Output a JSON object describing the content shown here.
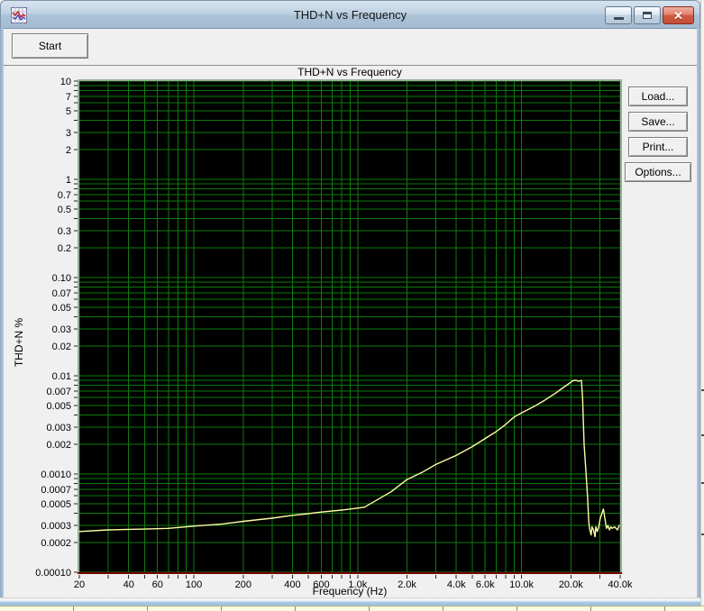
{
  "window": {
    "title": "THD+N vs Frequency"
  },
  "toolbar": {
    "start_label": "Start"
  },
  "side_buttons": [
    {
      "label": "Load..."
    },
    {
      "label": "Save..."
    },
    {
      "label": "Print..."
    },
    {
      "label": "Options..."
    }
  ],
  "chart_data": {
    "type": "line",
    "title": "THD+N vs Frequency",
    "xlabel": "Frequency (Hz)",
    "ylabel": "THD+N %",
    "x_scale": "log",
    "y_scale": "log",
    "xlim": [
      20,
      40000
    ],
    "ylim": [
      0.0001,
      10
    ],
    "grid": true,
    "colors": {
      "plot_background": "#000000",
      "grid": "#0d7c0d",
      "plot_border": "#97ad97",
      "x_axis_line": "#7a0000",
      "tick": "#222222",
      "curve": "#fdfda2",
      "label_text": "#000000"
    },
    "x_ticks": [
      {
        "label": "20",
        "value": 20
      },
      {
        "label": "40",
        "value": 40
      },
      {
        "label": "60",
        "value": 60
      },
      {
        "label": "100",
        "value": 100
      },
      {
        "label": "200",
        "value": 200
      },
      {
        "label": "400",
        "value": 400
      },
      {
        "label": "600",
        "value": 600
      },
      {
        "label": "1.0k",
        "value": 1000
      },
      {
        "label": "2.0k",
        "value": 2000
      },
      {
        "label": "4.0k",
        "value": 4000
      },
      {
        "label": "6.0k",
        "value": 6000
      },
      {
        "label": "10.0k",
        "value": 10000
      },
      {
        "label": "20.0k",
        "value": 20000
      },
      {
        "label": "40.0k",
        "value": 40000
      }
    ],
    "y_ticks": [
      {
        "label": "10",
        "value": 10
      },
      {
        "label": "7",
        "value": 7
      },
      {
        "label": "5",
        "value": 5
      },
      {
        "label": "3",
        "value": 3
      },
      {
        "label": "2",
        "value": 2
      },
      {
        "label": "1",
        "value": 1
      },
      {
        "label": "0.7",
        "value": 0.7
      },
      {
        "label": "0.5",
        "value": 0.5
      },
      {
        "label": "0.3",
        "value": 0.3
      },
      {
        "label": "0.2",
        "value": 0.2
      },
      {
        "label": "0.10",
        "value": 0.1
      },
      {
        "label": "0.07",
        "value": 0.07
      },
      {
        "label": "0.05",
        "value": 0.05
      },
      {
        "label": "0.03",
        "value": 0.03
      },
      {
        "label": "0.02",
        "value": 0.02
      },
      {
        "label": "0.01",
        "value": 0.01
      },
      {
        "label": "0.007",
        "value": 0.007
      },
      {
        "label": "0.005",
        "value": 0.005
      },
      {
        "label": "0.003",
        "value": 0.003
      },
      {
        "label": "0.002",
        "value": 0.002
      },
      {
        "label": "0.0010",
        "value": 0.001
      },
      {
        "label": "0.0007",
        "value": 0.0007
      },
      {
        "label": "0.0005",
        "value": 0.0005
      },
      {
        "label": "0.0003",
        "value": 0.0003
      },
      {
        "label": "0.0002",
        "value": 0.0002
      },
      {
        "label": "0.00010",
        "value": 0.0001
      }
    ],
    "series": [
      {
        "name": "THD+N",
        "points": [
          [
            20,
            0.00026
          ],
          [
            30,
            0.00027
          ],
          [
            50,
            0.000275
          ],
          [
            70,
            0.00028
          ],
          [
            100,
            0.000295
          ],
          [
            150,
            0.00031
          ],
          [
            200,
            0.00033
          ],
          [
            300,
            0.000355
          ],
          [
            400,
            0.00038
          ],
          [
            500,
            0.000395
          ],
          [
            600,
            0.00041
          ],
          [
            800,
            0.00043
          ],
          [
            1000,
            0.00045
          ],
          [
            1100,
            0.00046
          ],
          [
            1300,
            0.00054
          ],
          [
            1600,
            0.00066
          ],
          [
            2000,
            0.00088
          ],
          [
            2500,
            0.00105
          ],
          [
            3000,
            0.00125
          ],
          [
            4000,
            0.00155
          ],
          [
            5000,
            0.0019
          ],
          [
            6000,
            0.0023
          ],
          [
            7000,
            0.0027
          ],
          [
            8000,
            0.0032
          ],
          [
            9000,
            0.0038
          ],
          [
            10000,
            0.0042
          ],
          [
            12000,
            0.0049
          ],
          [
            14000,
            0.0057
          ],
          [
            16000,
            0.0066
          ],
          [
            18000,
            0.0076
          ],
          [
            20000,
            0.0086
          ],
          [
            20500,
            0.0089
          ],
          [
            21500,
            0.009
          ],
          [
            22300,
            0.0088
          ],
          [
            23200,
            0.009
          ],
          [
            23600,
            0.006
          ],
          [
            24100,
            0.002
          ],
          [
            24700,
            0.0011
          ],
          [
            25300,
            0.00059
          ],
          [
            25700,
            0.00033
          ],
          [
            26000,
            0.00028
          ],
          [
            26600,
            0.00024
          ],
          [
            26900,
            0.00029
          ],
          [
            27500,
            0.00027
          ],
          [
            28100,
            0.00023
          ],
          [
            28400,
            0.00029
          ],
          [
            29000,
            0.00026
          ],
          [
            29600,
            0.00029
          ],
          [
            30200,
            0.00035
          ],
          [
            31600,
            0.00044
          ],
          [
            32300,
            0.00035
          ],
          [
            33000,
            0.00028
          ],
          [
            33700,
            0.0003
          ],
          [
            34400,
            0.00027
          ],
          [
            35100,
            0.00029
          ],
          [
            35800,
            0.00028
          ],
          [
            37000,
            0.00029
          ],
          [
            38500,
            0.00027
          ],
          [
            39500,
            0.0003
          ]
        ]
      }
    ]
  }
}
